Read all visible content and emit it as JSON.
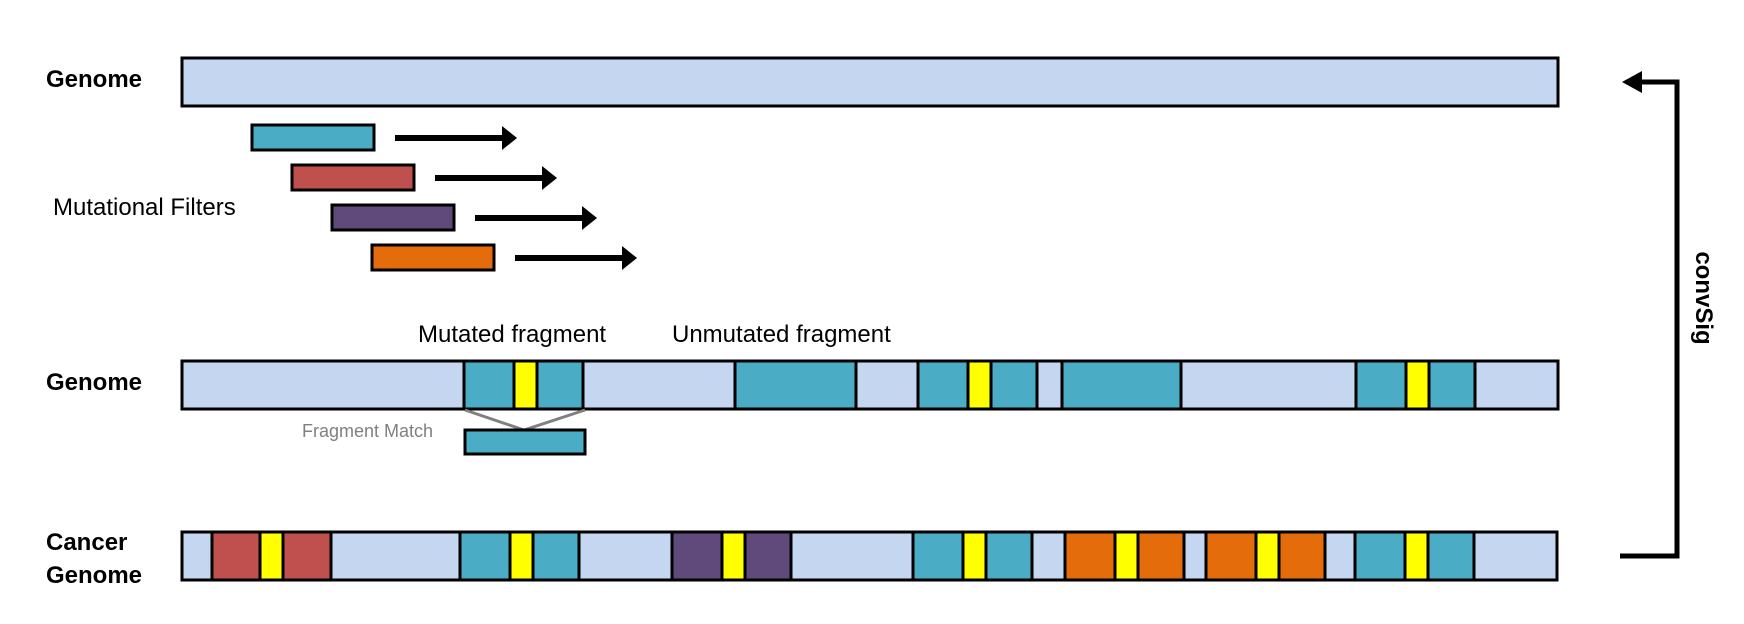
{
  "labels": {
    "genome_top": "Genome",
    "filters": "Mutational Filters",
    "mutated_fragment": "Mutated fragment",
    "unmutated_fragment": "Unmutated fragment",
    "genome_mid": "Genome",
    "fragment_match": "Fragment Match",
    "cancer_line1": "Cancer",
    "cancer_line2": "Genome",
    "convsig": "convSig"
  },
  "colors": {
    "genome": "#c5d6f0",
    "blue": "#4bacc6",
    "red": "#c0504d",
    "purple": "#604a7b",
    "orange": "#e46c0a",
    "mutation": "#ffff00",
    "outline": "#000000",
    "match_line": "#808080"
  },
  "filters": [
    "blue",
    "red",
    "purple",
    "orange"
  ],
  "genome_mid_segments": [
    "genome",
    "blue",
    "mutation",
    "blue",
    "genome",
    "blue",
    "genome",
    "blue",
    "mutation",
    "blue",
    "genome",
    "blue",
    "genome",
    "blue",
    "mutation",
    "blue",
    "genome"
  ],
  "cancer_segments": [
    "genome",
    "red",
    "mutation",
    "red",
    "genome",
    "blue",
    "mutation",
    "blue",
    "genome",
    "purple",
    "mutation",
    "purple",
    "genome",
    "blue",
    "mutation",
    "blue",
    "genome",
    "orange",
    "mutation",
    "orange",
    "genome",
    "orange",
    "mutation",
    "orange",
    "genome",
    "blue",
    "mutation",
    "blue",
    "genome"
  ]
}
